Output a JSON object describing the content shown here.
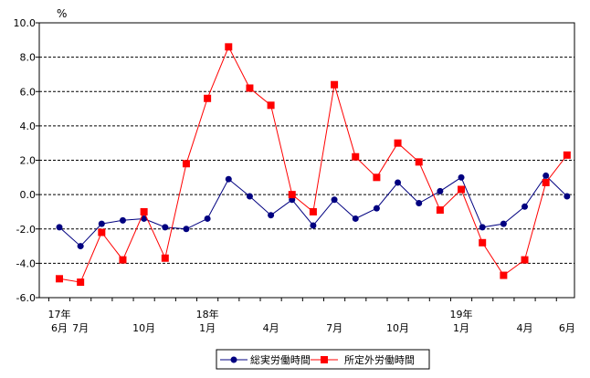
{
  "chart_data": {
    "type": "line",
    "unit": "%",
    "ylim": [
      -6.0,
      10.0
    ],
    "y_ticks": [
      "10.0",
      "8.0",
      "6.0",
      "4.0",
      "2.0",
      "0.0",
      "-2.0",
      "-4.0",
      "-6.0"
    ],
    "grid": "horizontal dashed",
    "legend_position": "bottom-center",
    "x_labels": [
      {
        "index": 0,
        "top": "17年",
        "bottom": "6月"
      },
      {
        "index": 1,
        "top": "",
        "bottom": "7月"
      },
      {
        "index": 4,
        "top": "",
        "bottom": "10月"
      },
      {
        "index": 7,
        "top": "18年",
        "bottom": "1月"
      },
      {
        "index": 10,
        "top": "",
        "bottom": "4月"
      },
      {
        "index": 13,
        "top": "",
        "bottom": "7月"
      },
      {
        "index": 16,
        "top": "",
        "bottom": "10月"
      },
      {
        "index": 19,
        "top": "19年",
        "bottom": "1月"
      },
      {
        "index": 22,
        "top": "",
        "bottom": "4月"
      },
      {
        "index": 24,
        "top": "",
        "bottom": "6月"
      }
    ],
    "series": [
      {
        "name": "総実労働時間",
        "color": "#000080",
        "marker": "circle",
        "values": [
          -1.9,
          -3.0,
          -1.7,
          -1.5,
          -1.4,
          -1.9,
          -2.0,
          -1.4,
          0.9,
          -0.1,
          -1.2,
          -0.3,
          -1.8,
          -0.3,
          -1.4,
          -0.8,
          0.7,
          -0.5,
          0.2,
          1.0,
          -1.9,
          -1.7,
          -0.7,
          1.1,
          -0.1
        ]
      },
      {
        "name": "所定外労働時間",
        "color": "#ff0000",
        "marker": "square",
        "values": [
          -4.9,
          -5.1,
          -2.2,
          -3.8,
          -1.0,
          -3.7,
          1.8,
          5.6,
          8.6,
          6.2,
          5.2,
          0.0,
          -1.0,
          6.4,
          2.2,
          1.0,
          3.0,
          1.9,
          -0.9,
          0.3,
          -2.8,
          -4.7,
          -3.8,
          0.7,
          2.3
        ]
      }
    ]
  }
}
